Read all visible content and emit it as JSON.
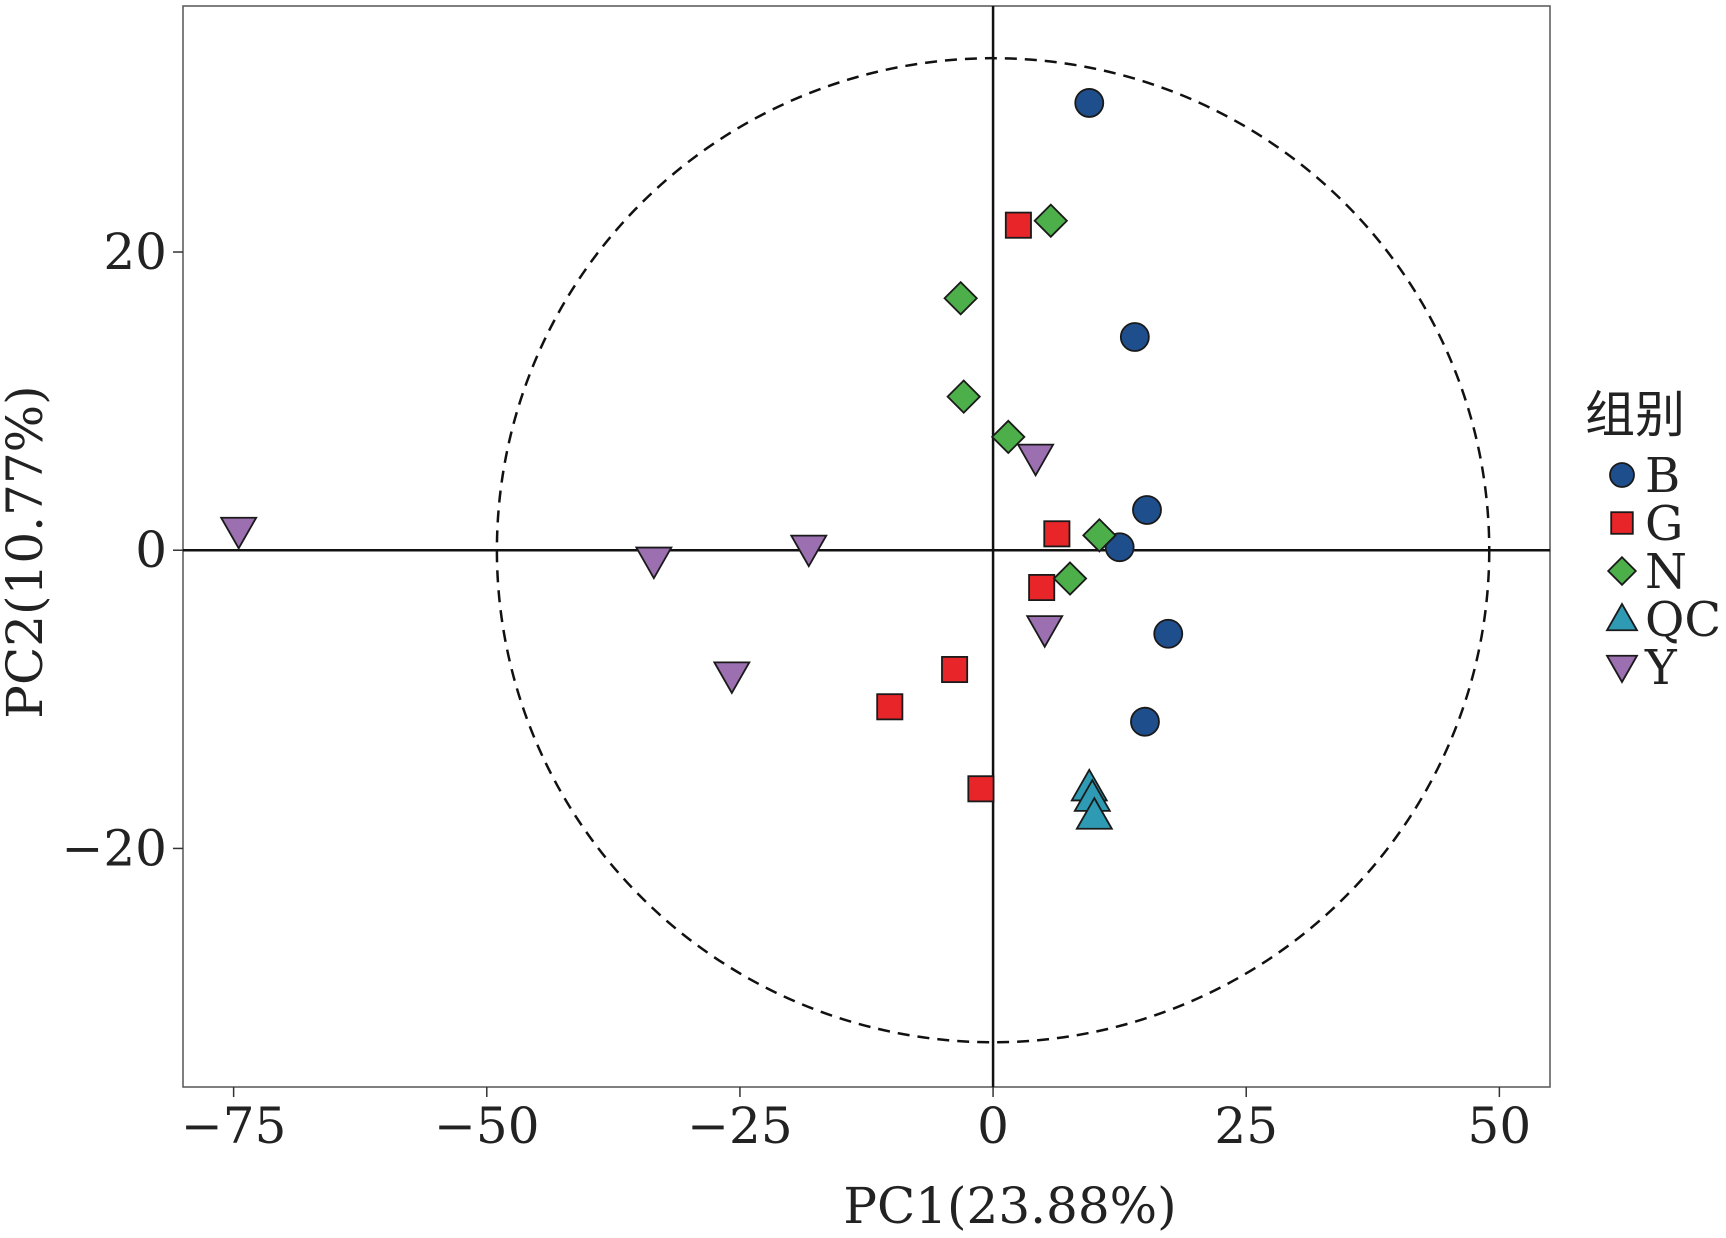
{
  "chart_data": {
    "type": "scatter",
    "xlabel": "PC1(23.88%)",
    "ylabel": "PC2(10.77%)",
    "xlim": [
      -80,
      55
    ],
    "ylim": [
      -36,
      36.5
    ],
    "xticks": [
      -75,
      -50,
      -25,
      0,
      25,
      50
    ],
    "yticks": [
      -20,
      0,
      20
    ],
    "reference_lines": {
      "x": 0,
      "y": 0
    },
    "ellipse": {
      "center": [
        0,
        0
      ],
      "rx": 49,
      "ry": 33,
      "style": "dashed"
    },
    "grid": false,
    "legend": {
      "title": "组别",
      "position": "right",
      "entries": [
        "B",
        "G",
        "N",
        "QC",
        "Y"
      ]
    },
    "series": [
      {
        "name": "B",
        "shape": "circle",
        "color": "#1f4e8c",
        "points": [
          [
            9.5,
            30
          ],
          [
            14,
            14.3
          ],
          [
            15.2,
            2.7
          ],
          [
            12.5,
            0.2
          ],
          [
            17.3,
            -5.6
          ],
          [
            15,
            -11.5
          ]
        ]
      },
      {
        "name": "G",
        "shape": "square",
        "color": "#e8262a",
        "points": [
          [
            2.5,
            21.8
          ],
          [
            6.3,
            1.1
          ],
          [
            4.8,
            -2.5
          ],
          [
            -3.8,
            -8
          ],
          [
            -10.2,
            -10.5
          ],
          [
            -1.2,
            -16
          ]
        ]
      },
      {
        "name": "N",
        "shape": "diamond",
        "color": "#4daf4a",
        "points": [
          [
            5.7,
            22.1
          ],
          [
            -3.2,
            16.9
          ],
          [
            -2.9,
            10.3
          ],
          [
            1.5,
            7.6
          ],
          [
            10.5,
            1
          ],
          [
            7.6,
            -1.9
          ]
        ]
      },
      {
        "name": "QC",
        "shape": "triangle-up",
        "color": "#2e9ab3",
        "points": [
          [
            9.5,
            -15.9
          ],
          [
            9.8,
            -16.6
          ],
          [
            10,
            -17.8
          ]
        ]
      },
      {
        "name": "Y",
        "shape": "triangle-down",
        "color": "#9b6fb0",
        "points": [
          [
            -74.5,
            1.3
          ],
          [
            -33.5,
            -0.7
          ],
          [
            -18.2,
            0.1
          ],
          [
            -25.8,
            -8.4
          ],
          [
            4.2,
            6.2
          ],
          [
            5.1,
            -5.3
          ]
        ]
      }
    ]
  }
}
